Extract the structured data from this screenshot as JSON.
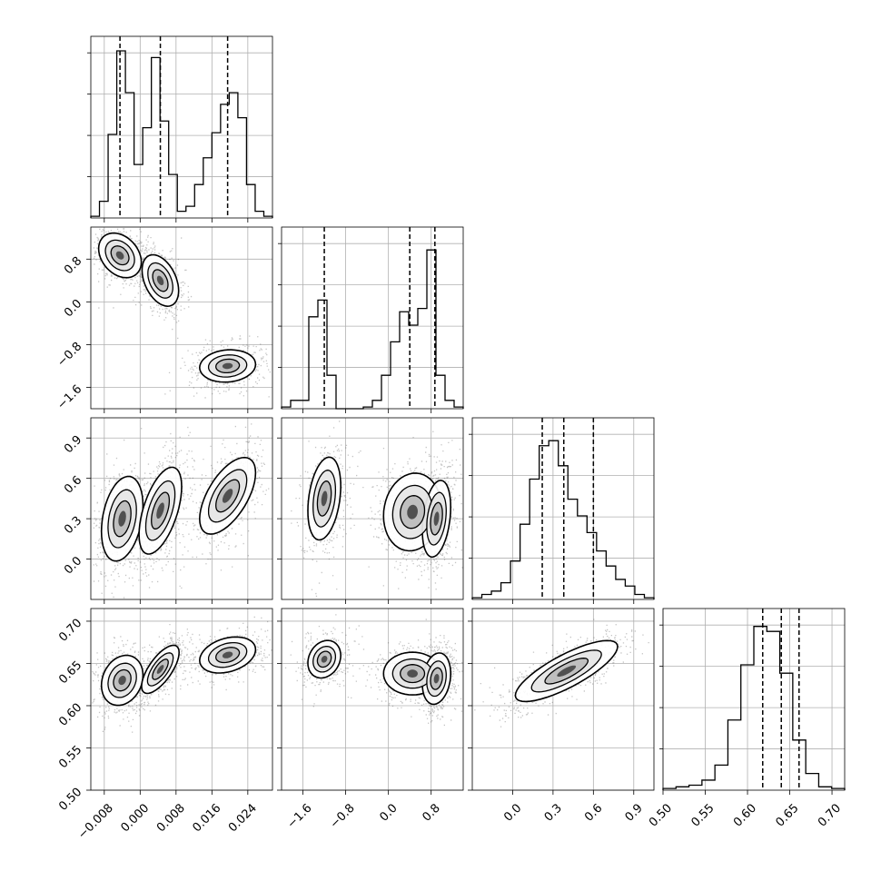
{
  "chart_data": {
    "type": "corner",
    "grid": true,
    "variables": [
      {
        "range": [
          -0.011,
          0.0295
        ],
        "ticks": [
          -0.008,
          0.0,
          0.008,
          0.016,
          0.024
        ],
        "tick_labels": [
          "−0.008",
          "0.000",
          "0.008",
          "0.016",
          "0.024"
        ],
        "quantiles": [
          -0.0045,
          0.0045,
          0.0195
        ],
        "hist": [
          0.01,
          0.1,
          0.5,
          1.0,
          0.75,
          0.32,
          0.54,
          0.96,
          0.58,
          0.26,
          0.04,
          0.07,
          0.2,
          0.36,
          0.51,
          0.68,
          0.75,
          0.6,
          0.2,
          0.04,
          0.01
        ]
      },
      {
        "range": [
          -2.0,
          1.4
        ],
        "ticks": [
          -1.6,
          -0.8,
          0.0,
          0.8
        ],
        "tick_labels": [
          "−1.6",
          "−0.8",
          "0.0",
          "0.8"
        ],
        "quantiles": [
          -1.2,
          0.4,
          0.87
        ],
        "hist": [
          0.01,
          0.05,
          0.05,
          0.55,
          0.65,
          0.2,
          0.0,
          0.0,
          0.0,
          0.01,
          0.05,
          0.2,
          0.4,
          0.58,
          0.5,
          0.6,
          0.95,
          0.2,
          0.05,
          0.01
        ]
      },
      {
        "range": [
          -0.3,
          1.05
        ],
        "ticks": [
          0.0,
          0.3,
          0.6,
          0.9
        ],
        "tick_labels": [
          "0.0",
          "0.3",
          "0.6",
          "0.9"
        ],
        "quantiles": [
          0.22,
          0.38,
          0.6
        ],
        "hist": [
          0.01,
          0.03,
          0.05,
          0.1,
          0.23,
          0.45,
          0.72,
          0.92,
          0.95,
          0.8,
          0.6,
          0.5,
          0.4,
          0.29,
          0.2,
          0.12,
          0.08,
          0.03,
          0.01
        ]
      },
      {
        "range": [
          0.5,
          0.715
        ],
        "ticks": [
          0.5,
          0.55,
          0.6,
          0.65,
          0.7
        ],
        "tick_labels": [
          "0.50",
          "0.55",
          "0.60",
          "0.65",
          "0.70"
        ],
        "quantiles": [
          0.618,
          0.64,
          0.661
        ],
        "hist": [
          0.01,
          0.02,
          0.03,
          0.06,
          0.15,
          0.42,
          0.75,
          0.98,
          0.95,
          0.7,
          0.3,
          0.1,
          0.02,
          0.01
        ]
      }
    ],
    "panels": [
      {
        "x": 0,
        "y": 1,
        "modes": [
          {
            "mx": -0.0045,
            "my": 0.87,
            "sx": 0.0025,
            "sy": 0.22,
            "rho": -0.3,
            "w": 1.0
          },
          {
            "mx": 0.0045,
            "my": 0.4,
            "sx": 0.0022,
            "sy": 0.26,
            "rho": -0.4,
            "w": 0.9
          },
          {
            "mx": 0.0195,
            "my": -1.2,
            "sx": 0.0035,
            "sy": 0.17,
            "rho": 0.1,
            "w": 0.75
          }
        ]
      },
      {
        "x": 0,
        "y": 2,
        "modes": [
          {
            "mx": -0.004,
            "my": 0.3,
            "sx": 0.0025,
            "sy": 0.17,
            "rho": 0.3,
            "w": 0.9
          },
          {
            "mx": 0.0045,
            "my": 0.36,
            "sx": 0.0025,
            "sy": 0.17,
            "rho": 0.55,
            "w": 1.0
          },
          {
            "mx": 0.0195,
            "my": 0.47,
            "sx": 0.0035,
            "sy": 0.16,
            "rho": 0.6,
            "w": 0.75
          }
        ]
      },
      {
        "x": 0,
        "y": 3,
        "modes": [
          {
            "mx": -0.004,
            "my": 0.63,
            "sx": 0.0025,
            "sy": 0.016,
            "rho": 0.2,
            "w": 0.9
          },
          {
            "mx": 0.0045,
            "my": 0.643,
            "sx": 0.0022,
            "sy": 0.015,
            "rho": 0.7,
            "w": 1.0
          },
          {
            "mx": 0.0195,
            "my": 0.66,
            "sx": 0.0035,
            "sy": 0.012,
            "rho": 0.3,
            "w": 0.75
          }
        ]
      },
      {
        "x": 1,
        "y": 2,
        "modes": [
          {
            "mx": -1.2,
            "my": 0.45,
            "sx": 0.18,
            "sy": 0.18,
            "rho": 0.3,
            "w": 0.6
          },
          {
            "mx": 0.45,
            "my": 0.35,
            "sx": 0.3,
            "sy": 0.16,
            "rho": 0.1,
            "w": 0.8
          },
          {
            "mx": 0.9,
            "my": 0.3,
            "sx": 0.14,
            "sy": 0.15,
            "rho": 0.3,
            "w": 1.0
          }
        ]
      },
      {
        "x": 1,
        "y": 3,
        "modes": [
          {
            "mx": -1.2,
            "my": 0.655,
            "sx": 0.18,
            "sy": 0.013,
            "rho": 0.2,
            "w": 0.6
          },
          {
            "mx": 0.45,
            "my": 0.638,
            "sx": 0.3,
            "sy": 0.014,
            "rho": 0.0,
            "w": 0.8
          },
          {
            "mx": 0.9,
            "my": 0.632,
            "sx": 0.14,
            "sy": 0.016,
            "rho": 0.2,
            "w": 1.0
          }
        ]
      },
      {
        "x": 2,
        "y": 3,
        "modes": [
          {
            "mx": 0.4,
            "my": 0.641,
            "sx": 0.2,
            "sy": 0.019,
            "rho": 0.8,
            "w": 1.0
          }
        ]
      }
    ]
  }
}
